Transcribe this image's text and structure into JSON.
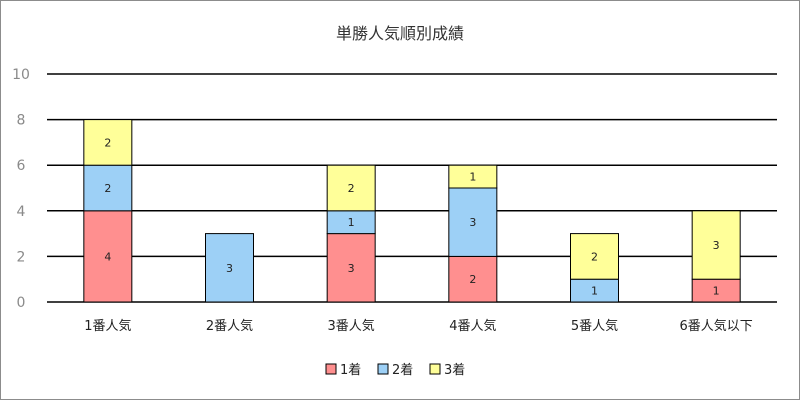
{
  "chart_data": {
    "type": "bar",
    "stacked": true,
    "title": "単勝人気順別成績",
    "categories": [
      "1番人気",
      "2番人気",
      "3番人気",
      "4番人気",
      "5番人気",
      "6番人気以下"
    ],
    "series": [
      {
        "name": "1着",
        "values": [
          4,
          0,
          3,
          2,
          0,
          1
        ],
        "color": "#ff8f8f"
      },
      {
        "name": "2着",
        "values": [
          2,
          3,
          1,
          3,
          1,
          0
        ],
        "color": "#9dd0f6"
      },
      {
        "name": "3着",
        "values": [
          2,
          0,
          2,
          1,
          2,
          3
        ],
        "color": "#ffff99"
      }
    ],
    "ylim": [
      0,
      10
    ],
    "yticks": [
      0,
      2,
      4,
      6,
      8,
      10
    ],
    "grid": true,
    "legend_position": "bottom",
    "xlabel": "",
    "ylabel": ""
  }
}
